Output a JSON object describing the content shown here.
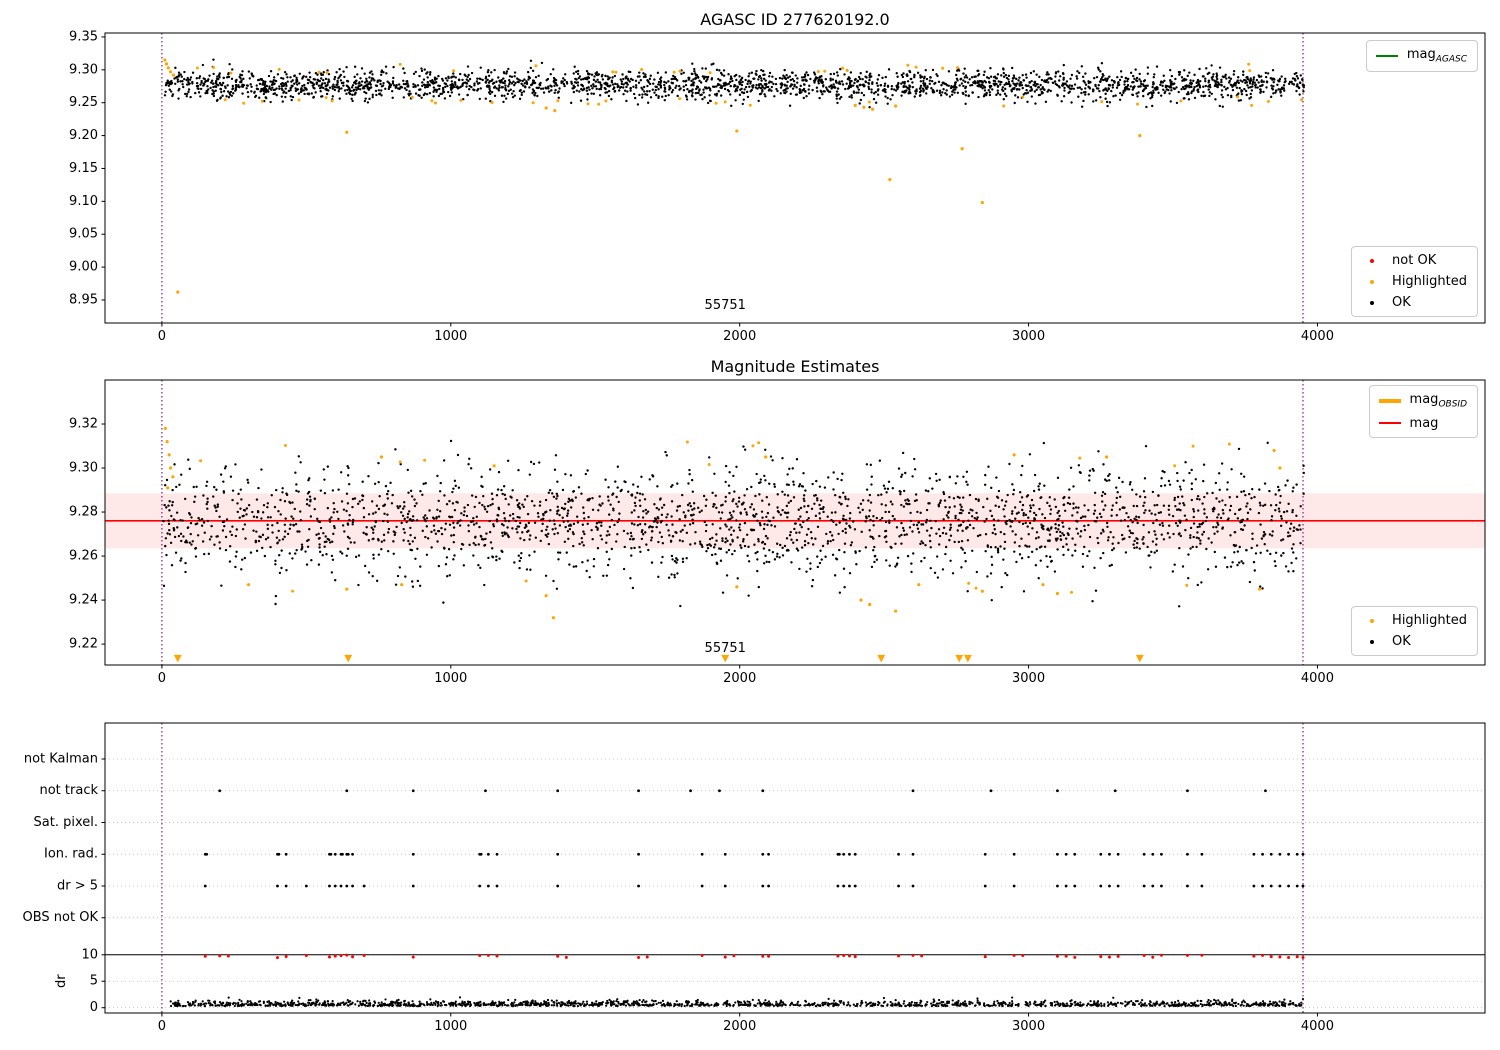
{
  "figure": {
    "background": "#ffffff"
  },
  "chart_data": [
    {
      "type": "scatter",
      "title": "AGASC ID 277620192.0",
      "annotation": {
        "text": "55751",
        "x": 1950,
        "y": 8.936
      },
      "xlim": [
        -197,
        4580
      ],
      "ylim": [
        8.915,
        9.356
      ],
      "xticks": [
        {
          "v": 0,
          "label": "0"
        },
        {
          "v": 1000,
          "label": "1000"
        },
        {
          "v": 2000,
          "label": "2000"
        },
        {
          "v": 3000,
          "label": "3000"
        },
        {
          "v": 4000,
          "label": "4000"
        }
      ],
      "yticks": [
        {
          "v": 8.95,
          "label": "8.95"
        },
        {
          "v": 9.0,
          "label": "9.00"
        },
        {
          "v": 9.05,
          "label": "9.05"
        },
        {
          "v": 9.1,
          "label": "9.10"
        },
        {
          "v": 9.15,
          "label": "9.15"
        },
        {
          "v": 9.2,
          "label": "9.20"
        },
        {
          "v": 9.25,
          "label": "9.25"
        },
        {
          "v": 9.3,
          "label": "9.30"
        },
        {
          "v": 9.35,
          "label": "9.35"
        }
      ],
      "vlines": {
        "xs": [
          0,
          3950
        ],
        "color": "#800080"
      },
      "series": [
        {
          "name": "ok-points",
          "color": "#000000",
          "size": 1.2,
          "gen": {
            "seed": 11,
            "n": 2600,
            "x0": 5,
            "x1": 3955,
            "mode": "normal",
            "mean": 9.277,
            "std": 0.011,
            "ymin": 9.243,
            "ymax": 9.318
          }
        },
        {
          "name": "highlighted-band-points",
          "color": "#ffa500",
          "size": 1.5,
          "gen": {
            "seed": 12,
            "n": 55,
            "x0": 5,
            "x1": 3955,
            "mode": "edges",
            "mean": 9.277,
            "off0": 0.018,
            "off1": 0.033,
            "ymin": 9.24,
            "ymax": 9.316
          }
        },
        {
          "name": "highlighted-outlier-points",
          "color": "#ffa500",
          "size": 1.6,
          "points": [
            [
              55,
              8.962
            ],
            [
              640,
              9.205
            ],
            [
              1330,
              9.242
            ],
            [
              1360,
              9.238
            ],
            [
              1990,
              9.207
            ],
            [
              2400,
              9.246
            ],
            [
              2430,
              9.243
            ],
            [
              2460,
              9.24
            ],
            [
              2520,
              9.133
            ],
            [
              2540,
              9.245
            ],
            [
              2770,
              9.18
            ],
            [
              2840,
              9.098
            ],
            [
              3385,
              9.2
            ],
            [
              10,
              9.315
            ],
            [
              16,
              9.309
            ],
            [
              22,
              9.303
            ],
            [
              30,
              9.297
            ],
            [
              40,
              9.292
            ]
          ]
        }
      ],
      "legend_top": {
        "items": [
          {
            "label_main": "mag",
            "label_sub": "AGASC",
            "marker": "line",
            "color": "#008000"
          }
        ]
      },
      "legend_bottom": {
        "items": [
          {
            "label_main": "not OK",
            "label_sub": "",
            "marker": "dot",
            "color": "#ff0000"
          },
          {
            "label_main": "Highlighted",
            "label_sub": "",
            "marker": "dot",
            "color": "#ffa500"
          },
          {
            "label_main": "OK",
            "label_sub": "",
            "marker": "dot",
            "color": "#000000"
          }
        ]
      }
    },
    {
      "type": "scatter",
      "title": "Magnitude Estimates",
      "annotation": {
        "text": "55751",
        "x": 1950,
        "y": 9.2165
      },
      "xlim": [
        -197,
        4580
      ],
      "ylim": [
        9.2105,
        9.34
      ],
      "xticks": [
        {
          "v": 0,
          "label": "0"
        },
        {
          "v": 1000,
          "label": "1000"
        },
        {
          "v": 2000,
          "label": "2000"
        },
        {
          "v": 3000,
          "label": "3000"
        },
        {
          "v": 4000,
          "label": "4000"
        }
      ],
      "yticks": [
        {
          "v": 9.22,
          "label": "9.22"
        },
        {
          "v": 9.24,
          "label": "9.24"
        },
        {
          "v": 9.26,
          "label": "9.26"
        },
        {
          "v": 9.28,
          "label": "9.28"
        },
        {
          "v": 9.3,
          "label": "9.30"
        },
        {
          "v": 9.32,
          "label": "9.32"
        }
      ],
      "vlines": {
        "xs": [
          0,
          3950
        ],
        "color": "#800080"
      },
      "band": {
        "y0": 9.2635,
        "y1": 9.2885,
        "color": "rgba(255,80,80,0.13)"
      },
      "hline": {
        "y": 9.276,
        "color": "#ff0000",
        "width": 1.6
      },
      "series": [
        {
          "name": "ok-points",
          "color": "#000000",
          "size": 1.2,
          "gen": {
            "seed": 21,
            "n": 2300,
            "x0": 5,
            "x1": 3955,
            "mode": "normal",
            "mean": 9.276,
            "std": 0.0125,
            "ymin": 9.228,
            "ymax": 9.313
          }
        },
        {
          "name": "highlighted-band-points",
          "color": "#ffa500",
          "size": 1.5,
          "gen": {
            "seed": 23,
            "n": 18,
            "x0": 100,
            "x1": 3900,
            "mode": "edges",
            "mean": 9.276,
            "off0": 0.025,
            "off1": 0.036,
            "ymin": 9.232,
            "ymax": 9.314
          }
        },
        {
          "name": "highlighted-outlier-points",
          "color": "#ffa500",
          "size": 1.6,
          "points": [
            [
              12,
              9.318
            ],
            [
              18,
              9.312
            ],
            [
              25,
              9.306
            ],
            [
              30,
              9.3
            ],
            [
              38,
              9.296
            ],
            [
              20,
              9.291
            ],
            [
              300,
              9.247
            ],
            [
              640,
              9.245
            ],
            [
              760,
              9.305
            ],
            [
              830,
              9.247
            ],
            [
              1150,
              9.301
            ],
            [
              1330,
              9.242
            ],
            [
              1355,
              9.232
            ],
            [
              1990,
              9.246
            ],
            [
              2090,
              9.305
            ],
            [
              2420,
              9.24
            ],
            [
              2450,
              9.238
            ],
            [
              2540,
              9.235
            ],
            [
              2620,
              9.247
            ],
            [
              2840,
              9.244
            ],
            [
              2950,
              9.306
            ],
            [
              3050,
              9.247
            ],
            [
              3100,
              9.243
            ],
            [
              3270,
              9.305
            ],
            [
              3800,
              9.245
            ],
            [
              3850,
              9.308
            ],
            [
              3870,
              9.3
            ]
          ]
        },
        {
          "name": "highlighted-clipped-points",
          "color": "#ffa500",
          "size": 1.8,
          "marker": "triangle-down",
          "y": 9.2135,
          "xs": [
            55,
            645,
            1950,
            2490,
            2760,
            2790,
            3385
          ]
        }
      ],
      "legend_top": {
        "items": [
          {
            "label_main": "mag",
            "label_sub": "OBSID",
            "marker": "thickline",
            "color": "#ffa500"
          },
          {
            "label_main": "mag",
            "label_sub": "",
            "marker": "line",
            "color": "#ff0000"
          }
        ]
      },
      "legend_bottom": {
        "items": [
          {
            "label_main": "Highlighted",
            "label_sub": "",
            "marker": "dot",
            "color": "#ffa500"
          },
          {
            "label_main": "OK",
            "label_sub": "",
            "marker": "dot",
            "color": "#000000"
          }
        ]
      }
    },
    {
      "type": "scatter",
      "title": "",
      "xlim": [
        -197,
        4580
      ],
      "ylim": [
        -1,
        53.8
      ],
      "xticks": [
        {
          "v": 0,
          "label": "0"
        },
        {
          "v": 1000,
          "label": "1000"
        },
        {
          "v": 2000,
          "label": "2000"
        },
        {
          "v": 3000,
          "label": "3000"
        },
        {
          "v": 4000,
          "label": "4000"
        }
      ],
      "cat_labels": [
        {
          "y": 47,
          "label": "not Kalman"
        },
        {
          "y": 41,
          "label": "not track"
        },
        {
          "y": 35,
          "label": "Sat. pixel."
        },
        {
          "y": 29,
          "label": "Ion. rad."
        },
        {
          "y": 23,
          "label": "dr > 5"
        },
        {
          "y": 17,
          "label": "OBS not OK"
        },
        {
          "y": 10,
          "label": "10"
        },
        {
          "y": 5,
          "label": "5"
        },
        {
          "y": 0,
          "label": "0"
        }
      ],
      "ylabel": "dr",
      "ylabel_y": 5,
      "gridlines": {
        "ys": [
          47,
          41,
          35,
          29,
          23,
          17,
          10,
          5,
          0
        ],
        "color": "#bbbbbb"
      },
      "hline": {
        "y": 10,
        "color": "#000000",
        "width": 1
      },
      "vlines": {
        "xs": [
          0,
          3950
        ],
        "color": "#800080"
      },
      "series": [
        {
          "name": "not-track-points",
          "color": "#000000",
          "size": 1.4,
          "y": 41,
          "xs": [
            200,
            640,
            870,
            1120,
            1370,
            1650,
            1830,
            1930,
            2080,
            2600,
            2870,
            3100,
            3300,
            3550,
            3820
          ]
        },
        {
          "name": "ion-rad-points",
          "color": "#000000",
          "size": 1.4,
          "y": 29,
          "xs": [
            150,
            155,
            400,
            405,
            430,
            580,
            585,
            600,
            620,
            625,
            640,
            645,
            660,
            870,
            1100,
            1105,
            1130,
            1160,
            1370,
            1650,
            1870,
            1950,
            2080,
            2100,
            2340,
            2345,
            2360,
            2380,
            2400,
            2550,
            2600,
            2850,
            2950,
            3100,
            3130,
            3160,
            3250,
            3280,
            3310,
            3400,
            3430,
            3460,
            3550,
            3600,
            3780,
            3810,
            3840,
            3870,
            3900,
            3930,
            3950
          ]
        },
        {
          "name": "dr-gt5-points",
          "color": "#000000",
          "size": 1.4,
          "y": 23,
          "xs": [
            150,
            400,
            430,
            500,
            580,
            600,
            620,
            640,
            660,
            700,
            870,
            1100,
            1130,
            1160,
            1370,
            1650,
            1870,
            1950,
            2080,
            2100,
            2340,
            2360,
            2380,
            2400,
            2550,
            2600,
            2850,
            2950,
            3100,
            3130,
            3160,
            3250,
            3280,
            3310,
            3400,
            3430,
            3460,
            3550,
            3600,
            3780,
            3810,
            3840,
            3870,
            3900,
            3930,
            3950
          ]
        },
        {
          "name": "dr-clipped-points",
          "color": "#ff0000",
          "size": 1.5,
          "yjitter": [
            9.45,
            9.95
          ],
          "seed": 33,
          "xs": [
            150,
            200,
            230,
            400,
            430,
            500,
            580,
            600,
            620,
            640,
            660,
            700,
            870,
            1100,
            1130,
            1160,
            1370,
            1400,
            1650,
            1680,
            1870,
            1950,
            1980,
            2080,
            2100,
            2340,
            2360,
            2380,
            2400,
            2550,
            2600,
            2630,
            2850,
            2950,
            2980,
            3100,
            3130,
            3160,
            3250,
            3280,
            3310,
            3400,
            3430,
            3460,
            3550,
            3600,
            3780,
            3810,
            3840,
            3870,
            3900,
            3930,
            3950
          ]
        },
        {
          "name": "dr-trace-points",
          "color": "#000000",
          "size": 1.1,
          "gen": {
            "seed": 31,
            "n": 1600,
            "x0": 30,
            "x1": 3950,
            "mode": "abs",
            "base": 0.3,
            "scale": 0.5,
            "ymin": 0.05,
            "ymax": 2.6
          }
        }
      ]
    }
  ]
}
